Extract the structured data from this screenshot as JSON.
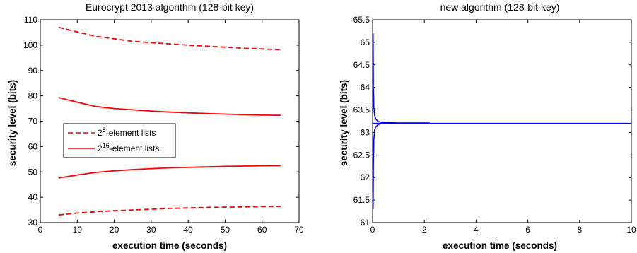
{
  "chart_data": [
    {
      "type": "line",
      "title": "Eurocrypt 2013 algorithm (128-bit key)",
      "xlabel": "execution time (seconds)",
      "ylabel": "security level (bits)",
      "xlim": [
        0,
        70
      ],
      "ylim": [
        30,
        110
      ],
      "xticks": [
        "0",
        "10",
        "20",
        "30",
        "40",
        "50",
        "60",
        "70"
      ],
      "yticks": [
        "30",
        "40",
        "50",
        "60",
        "70",
        "80",
        "90",
        "100",
        "110"
      ],
      "grid": false,
      "legend": {
        "placement": "center-left",
        "entries": [
          {
            "base": "2",
            "sup": "8",
            "rest": "-element lists",
            "style": "dashed",
            "color": "#ff0000"
          },
          {
            "base": "2",
            "sup": "16",
            "rest": "-element lists",
            "style": "solid",
            "color": "#ff0000"
          }
        ]
      },
      "series": [
        {
          "style": "dashed",
          "color": "#ff0000",
          "x": [
            5,
            10,
            15,
            20,
            25,
            30,
            35,
            40,
            45,
            50,
            55,
            60,
            65
          ],
          "y": [
            107,
            105.2,
            103.5,
            102.5,
            101.5,
            101,
            100.5,
            100,
            99.6,
            99.2,
            98.8,
            98.5,
            98.2
          ]
        },
        {
          "style": "solid",
          "color": "#ff0000",
          "x": [
            5,
            10,
            15,
            20,
            25,
            30,
            35,
            40,
            45,
            50,
            55,
            60,
            65
          ],
          "y": [
            79.3,
            77.5,
            75.8,
            75,
            74.5,
            74,
            73.6,
            73.3,
            73,
            72.8,
            72.6,
            72.4,
            72.3
          ]
        },
        {
          "style": "solid",
          "color": "#ff0000",
          "x": [
            5,
            10,
            15,
            20,
            25,
            30,
            35,
            40,
            45,
            50,
            55,
            60,
            65
          ],
          "y": [
            47.6,
            48.8,
            49.8,
            50.4,
            50.9,
            51.3,
            51.6,
            51.8,
            52,
            52.2,
            52.3,
            52.4,
            52.5
          ]
        },
        {
          "style": "dashed",
          "color": "#ff0000",
          "x": [
            5,
            10,
            15,
            20,
            25,
            30,
            35,
            40,
            45,
            50,
            55,
            60,
            65
          ],
          "y": [
            33,
            33.8,
            34.3,
            34.7,
            35,
            35.3,
            35.6,
            35.8,
            36,
            36.1,
            36.2,
            36.3,
            36.4
          ]
        }
      ]
    },
    {
      "type": "line",
      "title": "new algorithm (128-bit key)",
      "xlabel": "execution time (seconds)",
      "ylabel": "security level (bits)",
      "xlim": [
        0,
        10
      ],
      "ylim": [
        61,
        65.5
      ],
      "xticks": [
        "0",
        "2",
        "4",
        "6",
        "8",
        "10"
      ],
      "yticks": [
        "61",
        "61.5",
        "62",
        "62.5",
        "63",
        "63.5",
        "64",
        "64.5",
        "65",
        "65.5"
      ],
      "grid": false,
      "series": [
        {
          "style": "solid",
          "color": "#0000ff",
          "x": [
            0.02,
            0.03,
            0.05,
            0.08,
            0.12,
            0.2,
            0.3,
            0.5,
            1.0,
            2.2
          ],
          "y": [
            65.2,
            64,
            63.55,
            63.38,
            63.3,
            63.25,
            63.23,
            63.22,
            63.21,
            63.21
          ]
        },
        {
          "style": "solid",
          "color": "#0000ff",
          "x": [
            0.02,
            0.03,
            0.05,
            0.08,
            0.12,
            0.2,
            0.3,
            0.5,
            1.0,
            2.2
          ],
          "y": [
            61.3,
            62.3,
            62.85,
            63.05,
            63.12,
            63.17,
            63.19,
            63.2,
            63.2,
            63.2
          ]
        },
        {
          "style": "solid",
          "color": "#0000ff",
          "x": [
            0.01,
            0.1,
            1,
            2,
            4,
            6,
            8,
            10
          ],
          "y": [
            63.2,
            63.2,
            63.2,
            63.2,
            63.2,
            63.2,
            63.2,
            63.2
          ]
        }
      ]
    }
  ]
}
